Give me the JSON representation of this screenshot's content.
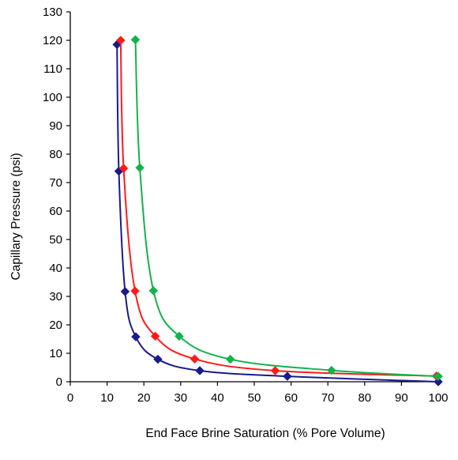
{
  "chart_data": {
    "type": "scatter",
    "title": "",
    "xlabel": "End Face Brine Saturation (% Pore Volume)",
    "ylabel": "Capillary Pressure (psi)",
    "xlim": [
      0,
      100
    ],
    "ylim": [
      0,
      130
    ],
    "x_ticks": [
      "0",
      "10",
      "20",
      "30",
      "40",
      "50",
      "60",
      "70",
      "80",
      "90",
      "100"
    ],
    "y_ticks": [
      "0",
      "10",
      "20",
      "30",
      "40",
      "50",
      "60",
      "70",
      "80",
      "90",
      "100",
      "110",
      "120",
      "130"
    ],
    "grid": false,
    "legend": "none",
    "series": [
      {
        "color": "#1a1a8c",
        "marker": "diamond",
        "line": "smooth",
        "points": [
          {
            "x": 12.7,
            "y": 118.5
          },
          {
            "x": 13.2,
            "y": 74
          },
          {
            "x": 14.9,
            "y": 31.7
          },
          {
            "x": 17.8,
            "y": 15.8
          },
          {
            "x": 23.8,
            "y": 7.9
          },
          {
            "x": 35.2,
            "y": 3.9
          },
          {
            "x": 59.0,
            "y": 1.9
          },
          {
            "x": 100,
            "y": 0
          }
        ]
      },
      {
        "color": "#ff1a1a",
        "marker": "diamond",
        "line": "smooth",
        "points": [
          {
            "x": 13.7,
            "y": 120
          },
          {
            "x": 14.5,
            "y": 75
          },
          {
            "x": 17.6,
            "y": 31.9
          },
          {
            "x": 23.1,
            "y": 16
          },
          {
            "x": 33.8,
            "y": 8
          },
          {
            "x": 55.7,
            "y": 3.9
          },
          {
            "x": 99.5,
            "y": 2.0
          }
        ]
      },
      {
        "color": "#14b24b",
        "marker": "diamond",
        "line": "smooth",
        "points": [
          {
            "x": 17.7,
            "y": 120.2
          },
          {
            "x": 18.9,
            "y": 75.2
          },
          {
            "x": 22.6,
            "y": 32
          },
          {
            "x": 29.6,
            "y": 16
          },
          {
            "x": 43.5,
            "y": 7.9
          },
          {
            "x": 71.0,
            "y": 4.0
          },
          {
            "x": 100,
            "y": 1.9
          }
        ]
      }
    ]
  }
}
